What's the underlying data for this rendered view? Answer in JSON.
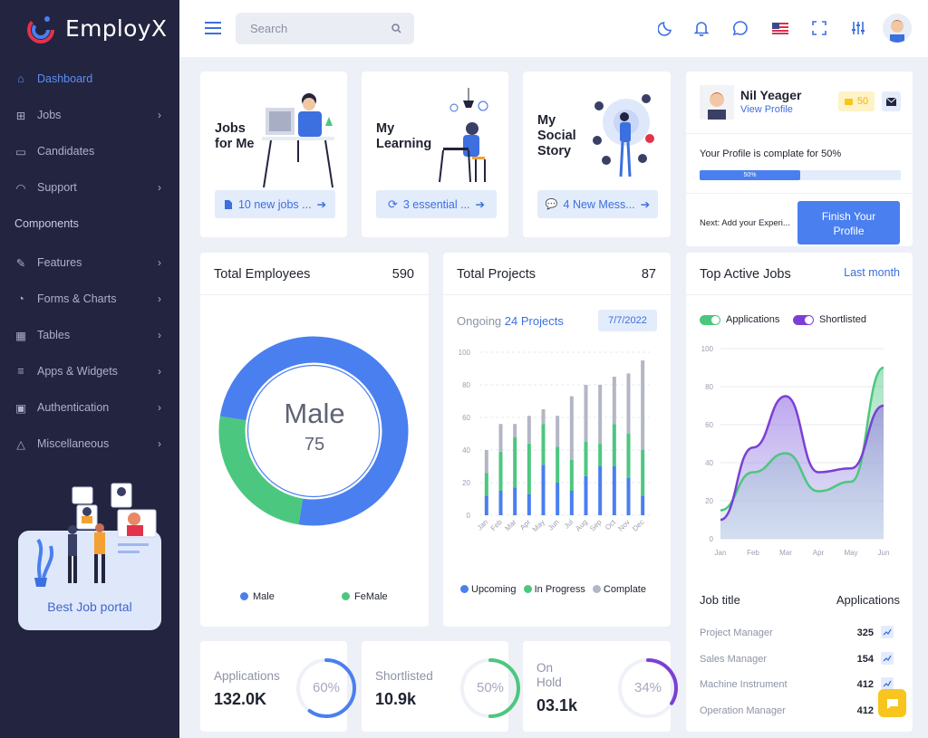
{
  "app": {
    "name": "EmployX"
  },
  "colors": {
    "sidebar": "#23243f",
    "accent": "#4a7ff0",
    "green": "#4cc77f",
    "purple": "#7b3fd6",
    "gray": "#b3b6c4",
    "yellow": "#f7c51e"
  },
  "sidebar": {
    "items": [
      {
        "label": "Dashboard",
        "icon": "home-icon",
        "chevron": false,
        "active": true
      },
      {
        "label": "Jobs",
        "icon": "file-plus-icon",
        "chevron": true
      },
      {
        "label": "Candidates",
        "icon": "briefcase-icon",
        "chevron": false
      },
      {
        "label": "Support",
        "icon": "headset-icon",
        "chevron": true
      }
    ],
    "section": "Components",
    "items2": [
      {
        "label": "Features",
        "icon": "edit-icon",
        "chevron": true
      },
      {
        "label": "Forms & Charts",
        "icon": "pie-icon",
        "chevron": true
      },
      {
        "label": "Tables",
        "icon": "grid-icon",
        "chevron": true
      },
      {
        "label": "Apps & Widgets",
        "icon": "database-icon",
        "chevron": true
      },
      {
        "label": "Authentication",
        "icon": "lock-icon",
        "chevron": true
      },
      {
        "label": "Miscellaneous",
        "icon": "alert-icon",
        "chevron": true
      }
    ],
    "promo": "Best Job portal"
  },
  "topbar": {
    "search_placeholder": "Search"
  },
  "quick": [
    {
      "title_line1": "Jobs",
      "title_line2": "for Me",
      "title_line3": "",
      "btn": "10 new jobs ...",
      "btn_icon": "document-icon"
    },
    {
      "title_line1": "My",
      "title_line2": "Learning",
      "title_line3": "",
      "btn": "3 essential ...",
      "btn_icon": "refresh-icon"
    },
    {
      "title_line1": "My",
      "title_line2": "Social",
      "title_line3": "Story",
      "btn": "4 New Mess...",
      "btn_icon": "chat-icon"
    }
  ],
  "profile": {
    "name": "Nil Yeager",
    "link": "View Profile",
    "badge": "50",
    "complete_text": "Your Profile is complate for 50%",
    "progress": 50,
    "progress_label": "50%",
    "next": "Next: Add your Experi...",
    "finish_line1": "Finish Your",
    "finish_line2": "Profile"
  },
  "employees": {
    "title": "Total Employees",
    "count": "590",
    "center_label": "Male",
    "center_value": "75",
    "legend": [
      "Male",
      "FeMale"
    ],
    "male_pct": 75
  },
  "projects": {
    "title": "Total Projects",
    "count": "87",
    "ongoing_label": "Ongoing",
    "ongoing_value": "24 Projects",
    "date": "7/7/2022",
    "legend": [
      "Upcoming",
      "In Progress",
      "Complate"
    ]
  },
  "jobs_chart": {
    "title": "Top Active Jobs",
    "period": "Last month",
    "legend": [
      "Applications",
      "Shortlisted"
    ]
  },
  "job_table": {
    "col1": "Job title",
    "col2": "Applications",
    "rows": [
      {
        "title": "Project Manager",
        "count": "325"
      },
      {
        "title": "Sales Manager",
        "count": "154"
      },
      {
        "title": "Machine Instrument",
        "count": "412"
      },
      {
        "title": "Operation Manager",
        "count": "412"
      }
    ]
  },
  "stats": [
    {
      "label": "Applications",
      "label2": "",
      "value": "132.0K",
      "pct": 60,
      "pct_label": "60%",
      "color": "#4a7ff0"
    },
    {
      "label": "Shortlisted",
      "label2": "",
      "value": "10.9k",
      "pct": 50,
      "pct_label": "50%",
      "color": "#4cc77f"
    },
    {
      "label": "On",
      "label2": "Hold",
      "value": "03.1k",
      "pct": 34,
      "pct_label": "34%",
      "color": "#7b3fd6"
    }
  ],
  "chart_data": [
    {
      "type": "pie",
      "title": "Total Employees",
      "categories": [
        "Male",
        "FeMale"
      ],
      "values": [
        75,
        25
      ]
    },
    {
      "type": "bar",
      "title": "Total Projects",
      "categories": [
        "Jan",
        "Feb",
        "Mar",
        "Apr",
        "May",
        "Jun",
        "Jul",
        "Aug",
        "Sep",
        "Oct",
        "Nov",
        "Dec"
      ],
      "ylim": [
        0,
        100
      ],
      "series": [
        {
          "name": "Upcoming",
          "values": [
            12,
            15,
            17,
            13,
            31,
            20,
            15,
            24,
            30,
            30,
            23,
            12
          ]
        },
        {
          "name": "In Progress",
          "values": [
            14,
            24,
            31,
            31,
            25,
            22,
            19,
            21,
            14,
            26,
            27,
            28
          ]
        },
        {
          "name": "Complate",
          "values": [
            14,
            17,
            8,
            17,
            9,
            19,
            39,
            35,
            36,
            29,
            37,
            55
          ]
        }
      ]
    },
    {
      "type": "area",
      "title": "Top Active Jobs",
      "categories": [
        "Jan",
        "Feb",
        "Mar",
        "Apr",
        "May",
        "Jun"
      ],
      "ylim": [
        0,
        100
      ],
      "series": [
        {
          "name": "Applications",
          "values": [
            15,
            35,
            45,
            25,
            30,
            90
          ]
        },
        {
          "name": "Shortlisted",
          "values": [
            10,
            48,
            75,
            35,
            37,
            70
          ]
        }
      ]
    }
  ]
}
